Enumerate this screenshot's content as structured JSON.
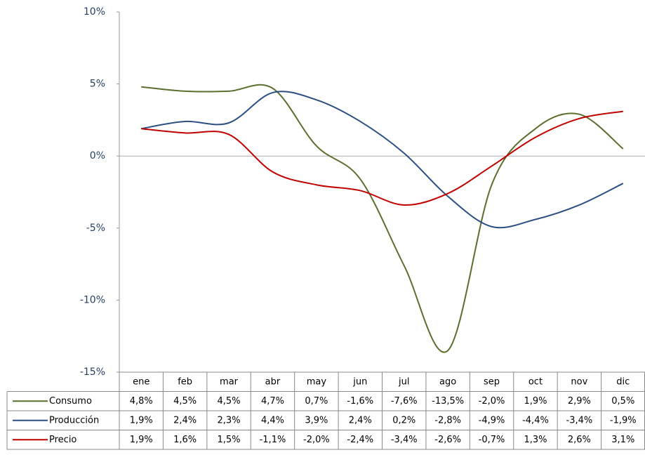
{
  "chart_data": {
    "type": "line",
    "categories": [
      "ene",
      "feb",
      "mar",
      "abr",
      "may",
      "jun",
      "jul",
      "ago",
      "sep",
      "oct",
      "nov",
      "dic"
    ],
    "series": [
      {
        "name": "Consumo",
        "color": "#5a6e2d",
        "values": [
          4.8,
          4.5,
          4.5,
          4.7,
          0.7,
          -1.6,
          -7.6,
          -13.5,
          -2.0,
          1.9,
          2.9,
          0.5
        ],
        "value_labels": [
          "4,8%",
          "4,5%",
          "4,5%",
          "4,7%",
          "0,7%",
          "-1,6%",
          "-7,6%",
          "-13,5%",
          "-2,0%",
          "1,9%",
          "2,9%",
          "0,5%"
        ]
      },
      {
        "name": "Producción",
        "color": "#2b4f81",
        "values": [
          1.9,
          2.4,
          2.3,
          4.4,
          3.9,
          2.4,
          0.2,
          -2.8,
          -4.9,
          -4.4,
          -3.4,
          -1.9
        ],
        "value_labels": [
          "1,9%",
          "2,4%",
          "2,3%",
          "4,4%",
          "3,9%",
          "2,4%",
          "0,2%",
          "-2,8%",
          "-4,9%",
          "-4,4%",
          "-3,4%",
          "-1,9%"
        ]
      },
      {
        "name": "Precio",
        "color": "#c00000",
        "values": [
          1.9,
          1.6,
          1.5,
          -1.1,
          -2.0,
          -2.4,
          -3.4,
          -2.6,
          -0.7,
          1.3,
          2.6,
          3.1
        ],
        "value_labels": [
          "1,9%",
          "1,6%",
          "1,5%",
          "-1,1%",
          "-2,0%",
          "-2,4%",
          "-3,4%",
          "-2,6%",
          "-0,7%",
          "1,3%",
          "2,6%",
          "3,1%"
        ]
      }
    ],
    "ylim": [
      -15,
      10
    ],
    "yticks": [
      {
        "value": -15,
        "label": "-15%"
      },
      {
        "value": -10,
        "label": "-10%"
      },
      {
        "value": -5,
        "label": "-5%"
      },
      {
        "value": 0,
        "label": "0%"
      },
      {
        "value": 5,
        "label": "5%"
      },
      {
        "value": 10,
        "label": "10%"
      }
    ],
    "grid": false
  }
}
